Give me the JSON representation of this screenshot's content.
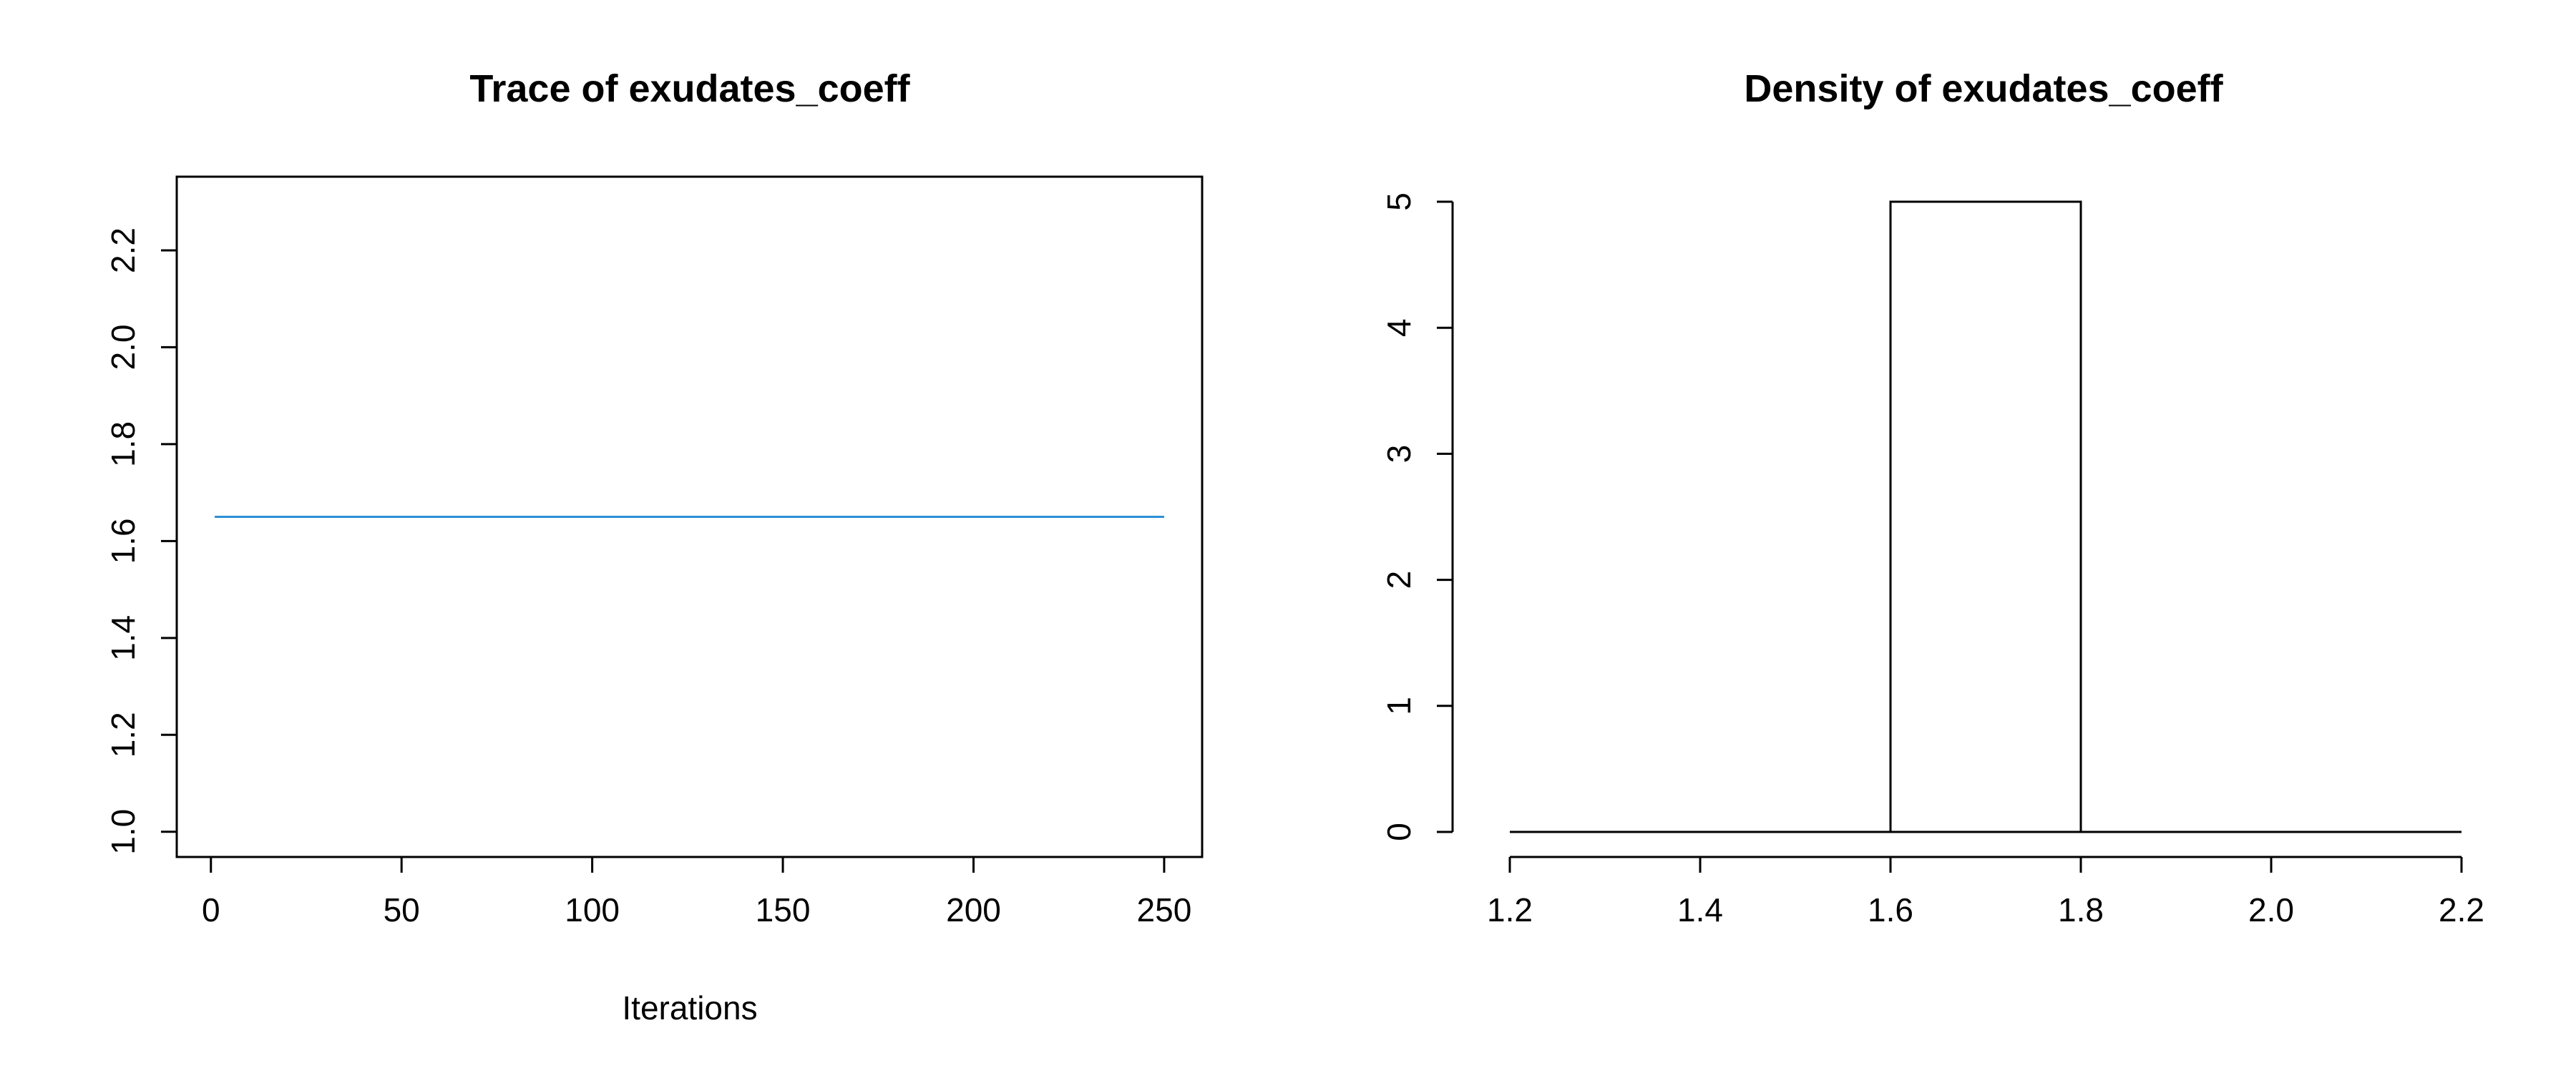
{
  "chart_data": [
    {
      "type": "line",
      "title": "Trace of exudates_coeff",
      "xlabel": "Iterations",
      "ylabel": "",
      "xlim": [
        1,
        250
      ],
      "ylim": [
        1.0,
        2.3
      ],
      "x_ticks": [
        "0",
        "50",
        "100",
        "150",
        "200",
        "250"
      ],
      "y_ticks": [
        "1.0",
        "1.2",
        "1.4",
        "1.6",
        "1.8",
        "2.0",
        "2.2"
      ],
      "series": [
        {
          "x": [
            1,
            250
          ],
          "values": [
            1.65,
            1.65
          ],
          "color": "#2b8fd6"
        }
      ],
      "grid": false
    },
    {
      "type": "bar",
      "title": "Density of exudates_coeff",
      "xlabel": "",
      "ylabel": "",
      "xlim": [
        1.2,
        2.2
      ],
      "ylim": [
        0,
        5
      ],
      "x_ticks": [
        "1.2",
        "1.4",
        "1.6",
        "1.8",
        "2.0",
        "2.2"
      ],
      "y_ticks": [
        "0",
        "1",
        "2",
        "3",
        "4",
        "5"
      ],
      "bins": [
        {
          "from": 1.2,
          "to": 1.6,
          "value": 0
        },
        {
          "from": 1.6,
          "to": 1.8,
          "value": 5
        },
        {
          "from": 1.8,
          "to": 2.2,
          "value": 0
        }
      ],
      "grid": false
    }
  ]
}
